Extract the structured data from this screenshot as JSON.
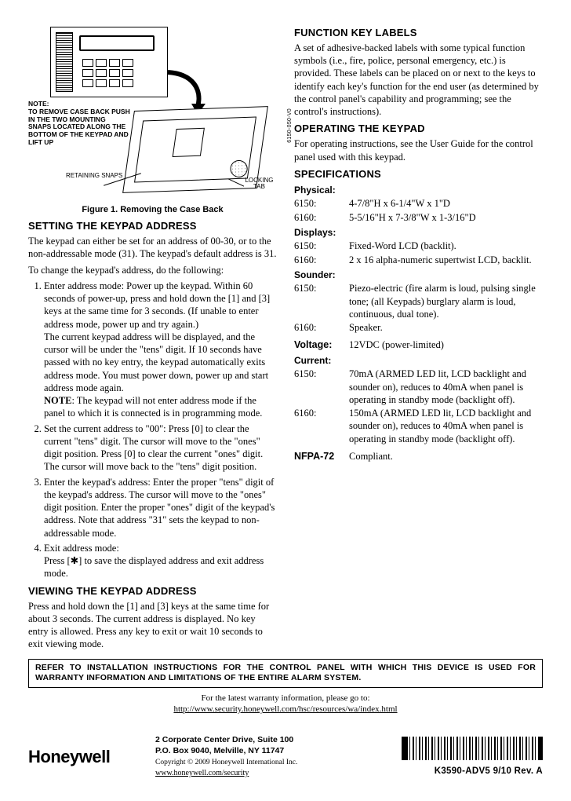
{
  "left": {
    "figure_caption": "Figure 1. Removing the Case Back",
    "note_small_title": "NOTE:",
    "note_small_body": "TO REMOVE CASE BACK PUSH IN THE TWO MOUNTING SNAPS LOCATED ALONG THE BOTTOM OF THE KEYPAD AND LIFT UP",
    "label_retaining": "RETAINING\nSNAPS",
    "label_locking": "LOCKING\nTAB",
    "side_code": "6150-050-V0",
    "setting_title": "SETTING THE KEYPAD ADDRESS",
    "setting_p1": "The keypad can either be set for an address of 00-30, or to the non-addressable mode (31). The keypad's default address is 31.",
    "setting_p2": "To change the keypad's address, do the following:",
    "step1a": "Enter address mode: Power up the keypad.  Within 60 seconds of power-up, press and hold down the [1] and [3] keys at the same time for 3 seconds.  (If unable to enter address mode, power up and try again.)",
    "step1b": "The current keypad address will be displayed, and the cursor will be under the \"tens\" digit.  If 10 seconds have passed with no key entry, the keypad automatically exits address mode.  You must power down, power up and start address mode again.",
    "step1_note_label": "NOTE",
    "step1_note": ": The keypad will not enter address mode if the panel to which it is connected is in programming mode.",
    "step2": "Set the current address to \"00\": Press [0] to clear the current \"tens\" digit. The cursor will move to the \"ones\" digit position.  Press [0] to clear the current \"ones\" digit. The cursor will move back to the \"tens\" digit position.",
    "step3": "Enter the keypad's address: Enter the proper \"tens\" digit of the keypad's address.  The cursor will move to the \"ones\" digit position.  Enter the proper \"ones\" digit of the keypad's address.  Note that address \"31\" sets the keypad to non-addressable mode.",
    "step4a": "Exit address mode:",
    "step4b": "Press [✱] to save the displayed address and exit address mode.",
    "viewing_title": "VIEWING THE KEYPAD ADDRESS",
    "viewing_p": "Press and hold down the [1] and [3] keys at the same time for about 3 seconds.  The current address is displayed.  No key entry is allowed.  Press any key to exit or wait 10 seconds to exit viewing mode."
  },
  "right": {
    "fk_title": "FUNCTION KEY LABELS",
    "fk_body": "A set of adhesive-backed labels with some typical function symbols (i.e., fire, police, personal emergency, etc.) is provided.  These labels can be placed on or next to the keys to identify each key's function for the end user (as determined by the control panel's capability and programming; see the control's instructions).",
    "op_title": "OPERATING THE KEYPAD",
    "op_body": "For operating instructions, see the User Guide for the control panel used with this keypad.",
    "specs_title": "SPECIFICATIONS",
    "groups": [
      {
        "heading": "Physical:",
        "rows": [
          {
            "k": "6150:",
            "v": "4-7/8\"H x 6-1/4\"W x 1\"D"
          },
          {
            "k": "6160:",
            "v": "5-5/16\"H x 7-3/8\"W x 1-3/16\"D"
          }
        ]
      },
      {
        "heading": "Displays:",
        "rows": [
          {
            "k": "6150:",
            "v": "Fixed-Word LCD (backlit)."
          },
          {
            "k": "6160:",
            "v": "2 x 16 alpha-numeric supertwist LCD, backlit."
          }
        ]
      },
      {
        "heading": "Sounder:",
        "rows": [
          {
            "k": "6150:",
            "v": "Piezo-electric (fire alarm is loud, pulsing single tone; (all Keypads) burglary alarm is loud, continuous, dual tone)."
          },
          {
            "k": "6160:",
            "v": "Speaker."
          }
        ]
      },
      {
        "heading": "Voltage:",
        "single": "12VDC (power-limited)"
      },
      {
        "heading": "Current:",
        "rows": [
          {
            "k": "6150:",
            "v": "70mA (ARMED LED lit, LCD backlight and sounder on), reduces to 40mA when panel is operating in standby mode (backlight off)."
          },
          {
            "k": "6160:",
            "v": "150mA (ARMED LED lit, LCD backlight and sounder on), reduces to 40mA when panel is operating in standby mode (backlight off)."
          }
        ]
      },
      {
        "heading": "NFPA-72",
        "single": "Compliant."
      }
    ]
  },
  "warranty_box": "REFER TO INSTALLATION INSTRUCTIONS FOR THE CONTROL PANEL WITH WHICH THIS DEVICE IS USED FOR WARRANTY INFORMATION AND LIMITATIONS OF THE ENTIRE ALARM SYSTEM.",
  "warranty_line1": "For the latest warranty information, please go to:",
  "warranty_url": "http://www.security.honeywell.com/hsc/resources/wa/index.html",
  "footer": {
    "brand": "Honeywell",
    "addr1": "2 Corporate Center Drive, Suite 100",
    "addr2": "P.O. Box 9040, Melville, NY 11747",
    "copyright": "Copyright © 2009 Honeywell International Inc.",
    "url": "www.honeywell.com/security",
    "docnum": "K3590-ADV5   9/10   Rev. A"
  }
}
